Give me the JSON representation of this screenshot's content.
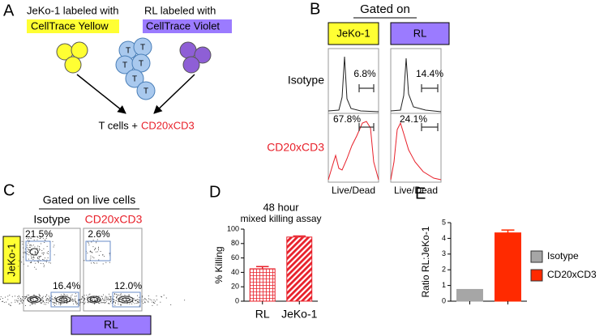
{
  "panel_a": {
    "label": "A",
    "line1_prefix": "JeKo-1 labeled with",
    "line1_dye": "CellTrace Yellow",
    "line2_prefix": "RL  labeled with",
    "line2_dye": "CellTrace Violet",
    "t_label": "T",
    "result_prefix": "T cells +",
    "result_drug": "CD20xCD3"
  },
  "panel_b": {
    "label": "B",
    "title": "Gated on",
    "columns": [
      "JeKo-1",
      "RL"
    ],
    "rows": [
      "Isotype",
      "CD20xCD3"
    ],
    "percents": [
      [
        "6.8%",
        "14.4%"
      ],
      [
        "67.8%",
        "24.1%"
      ]
    ],
    "x_label": "Live/Dead"
  },
  "panel_c": {
    "label": "C",
    "title": "Gated on live cells",
    "columns": [
      "Isotype",
      "CD20xCD3"
    ],
    "y_label": "JeKo-1",
    "x_label": "RL",
    "gates": [
      [
        "21.5%",
        "16.4%"
      ],
      [
        "2.6%",
        "12.0%"
      ]
    ]
  },
  "chart_data": [
    {
      "type": "bar",
      "label": "D",
      "title": "48 hour",
      "subtitle": "mixed killing assay",
      "y_label": "% Killing",
      "categories": [
        "RL",
        "JeKo-1"
      ],
      "values": [
        45,
        89
      ],
      "errors": [
        3,
        1.5
      ],
      "patterns": [
        "grid",
        "stripes"
      ],
      "colors": [
        "#e8202a",
        "#e8202a"
      ],
      "ylim": [
        0,
        100
      ],
      "yticks": [
        0,
        20,
        40,
        60,
        80,
        100
      ],
      "show_categories": true,
      "legend": false
    },
    {
      "type": "bar",
      "label": "E",
      "y_label": "Ratio RL:JeKo-1",
      "categories": [
        "Isotype",
        "CD20xCD3"
      ],
      "values": [
        0.75,
        4.35
      ],
      "errors": [
        0,
        0.18
      ],
      "colors": [
        "#a6a6a6",
        "#ff2a00"
      ],
      "ylim": [
        0,
        5
      ],
      "yticks": [
        0,
        1,
        2,
        3,
        4,
        5
      ],
      "show_categories": false,
      "legend": true
    }
  ]
}
